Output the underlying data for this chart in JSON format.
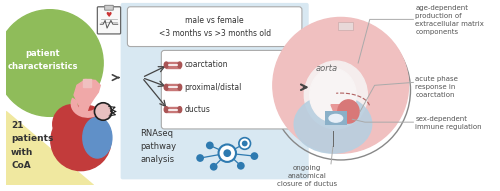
{
  "bg_color": "#ffffff",
  "left_panel": {
    "green_circle_color": "#8fbc5a",
    "yellow_tri_color": "#f0e8a0",
    "patient_text": "patient\ncharacteristics",
    "patient_text_color": "#ffffff",
    "count_text": "21\npatients\nwith\nCoA",
    "count_text_color": "#333333"
  },
  "middle_panel": {
    "bg_color": "#d8e8f2",
    "comparison_text": "male vs female\n<3 months vs >3 months old",
    "box_color": "#ffffff",
    "box_border": "#aaaaaa",
    "items": [
      "coarctation",
      "proximal/distal",
      "ductus"
    ],
    "item_icon_color": "#c87878",
    "rnaseq_text": "RNAseq\npathway\nanalysis",
    "node_color": "#2e7ab0",
    "arrow_color": "#444444"
  },
  "right_panel": {
    "aorta_pink": "#f0c0c0",
    "aorta_dark_pink": "#e89898",
    "aorta_coarc_pink": "#d87878",
    "ductus_blue": "#b8cfe0",
    "ductus_dark_blue": "#8ab0c8",
    "aorta_white": "#f8f0f0",
    "circle_color": "#888888",
    "aorta_label": "aorta",
    "labels": [
      "age-dependent\nproduction of\nextracellular matrix\ncomponents",
      "acute phase\nresponse in\ncoarctation",
      "sex-dependent\nimmune regulation",
      "ongoing\nanatomical\nclosure of ductus"
    ],
    "label_color": "#555555"
  },
  "arrow_color": "#444444",
  "figsize": [
    5.0,
    1.91
  ],
  "dpi": 100
}
